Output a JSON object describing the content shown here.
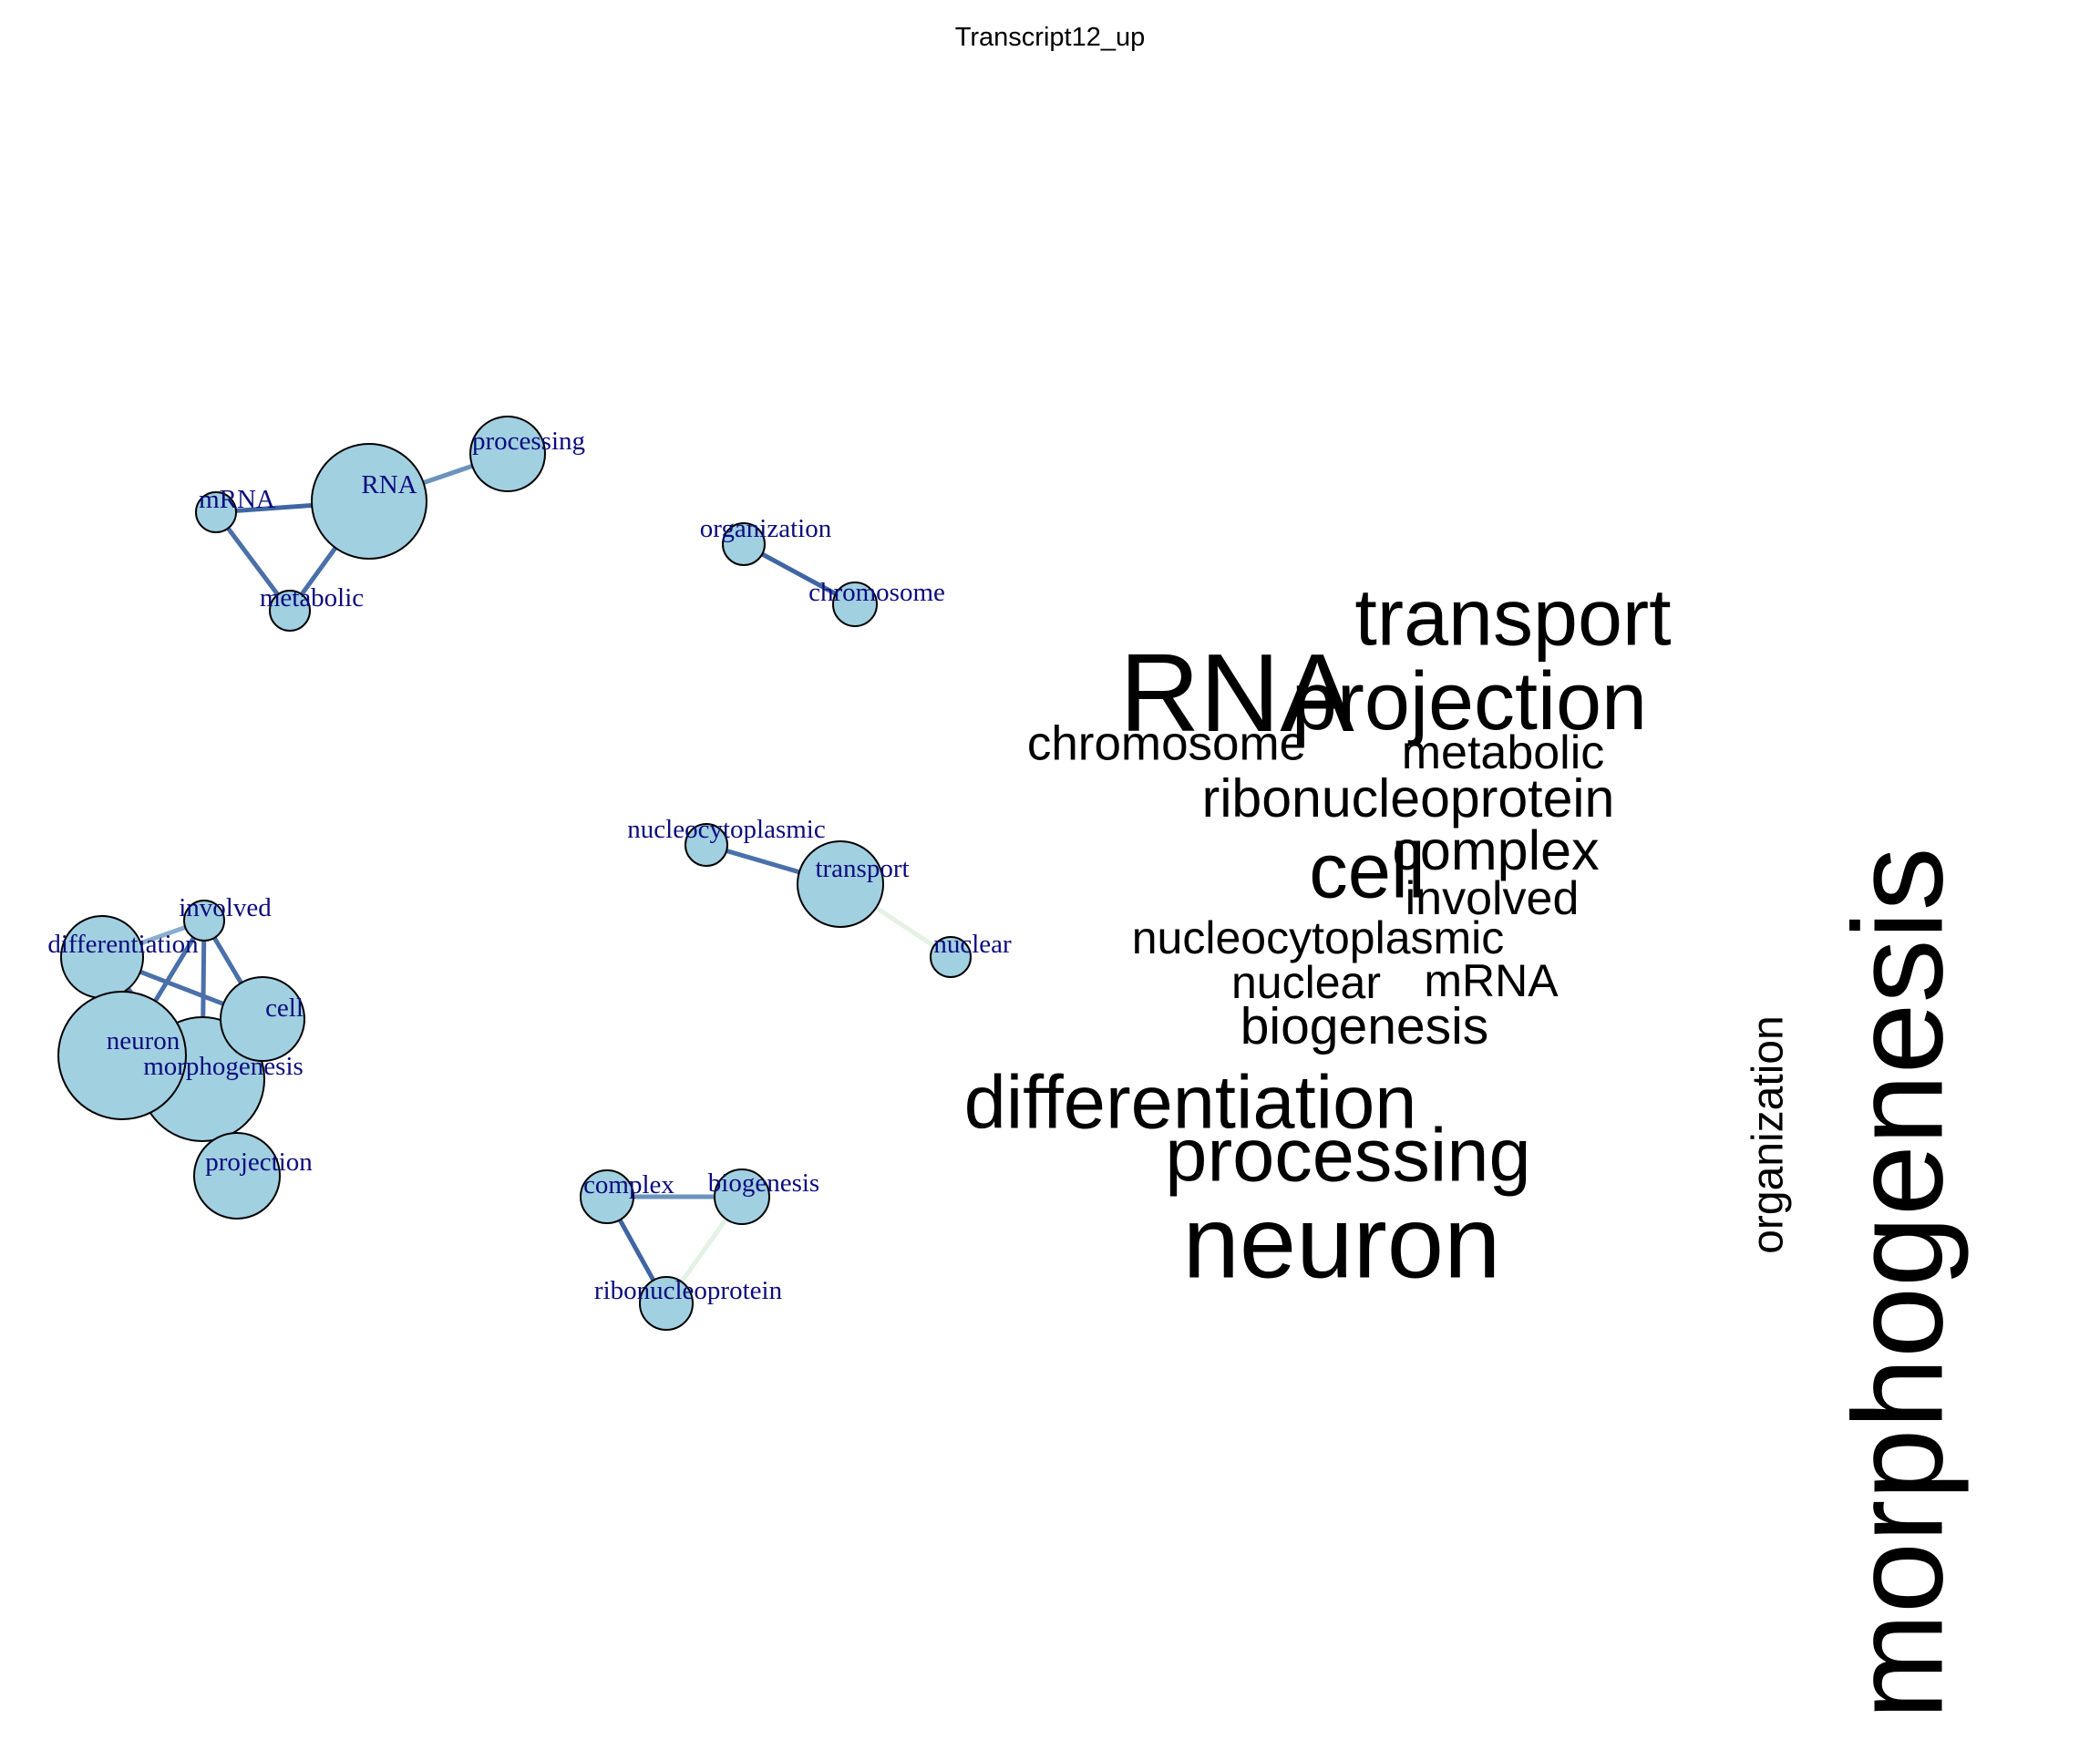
{
  "title": "Transcript12_up",
  "network": {
    "node_color": "#a1d0e1",
    "label_color": "#0c0c7e",
    "nodes": [
      {
        "id": "RNA",
        "label": "RNA"
      },
      {
        "id": "processing",
        "label": "processing"
      },
      {
        "id": "mRNA",
        "label": "mRNA"
      },
      {
        "id": "metabolic",
        "label": "metabolic"
      },
      {
        "id": "organization",
        "label": "organization"
      },
      {
        "id": "chromosome",
        "label": "chromosome"
      },
      {
        "id": "nucleocytoplasmic",
        "label": "nucleocytoplasmic"
      },
      {
        "id": "transport",
        "label": "transport"
      },
      {
        "id": "nuclear",
        "label": "nuclear"
      },
      {
        "id": "involved",
        "label": "involved"
      },
      {
        "id": "differentiation",
        "label": "differentiation"
      },
      {
        "id": "cell",
        "label": "cell"
      },
      {
        "id": "morphogenesis",
        "label": "morphogenesis"
      },
      {
        "id": "neuron",
        "label": "neuron"
      },
      {
        "id": "projection",
        "label": "projection"
      },
      {
        "id": "complex",
        "label": "complex"
      },
      {
        "id": "biogenesis",
        "label": "biogenesis"
      },
      {
        "id": "ribonucleoprotein",
        "label": "ribonucleoprotein"
      }
    ],
    "edges": [
      {
        "source": "RNA",
        "target": "processing",
        "color": "#6a93bd"
      },
      {
        "source": "mRNA",
        "target": "RNA",
        "color": "#3f66a3"
      },
      {
        "source": "mRNA",
        "target": "metabolic",
        "color": "#4a70aa"
      },
      {
        "source": "metabolic",
        "target": "RNA",
        "color": "#4a70aa"
      },
      {
        "source": "organization",
        "target": "chromosome",
        "color": "#3f66a3"
      },
      {
        "source": "nucleocytoplasmic",
        "target": "transport",
        "color": "#4a70aa"
      },
      {
        "source": "transport",
        "target": "nuclear",
        "color": "#e3f2e4"
      },
      {
        "source": "involved",
        "target": "cell",
        "color": "#4a70aa"
      },
      {
        "source": "involved",
        "target": "morphogenesis",
        "color": "#4a70aa"
      },
      {
        "source": "involved",
        "target": "neuron",
        "color": "#4a70aa"
      },
      {
        "source": "involved",
        "target": "differentiation",
        "color": "#8aaece"
      },
      {
        "source": "differentiation",
        "target": "cell",
        "color": "#4a70aa"
      },
      {
        "source": "differentiation",
        "target": "morphogenesis",
        "color": "#4a70aa"
      },
      {
        "source": "neuron",
        "target": "differentiation",
        "color": "#4a70aa"
      },
      {
        "source": "neuron",
        "target": "morphogenesis",
        "color": "#4a70aa"
      },
      {
        "source": "neuron",
        "target": "cell",
        "color": "#4a70aa"
      },
      {
        "source": "morphogenesis",
        "target": "cell",
        "color": "#4a70aa"
      },
      {
        "source": "projection",
        "target": "morphogenesis",
        "color": "#4a70aa"
      },
      {
        "source": "complex",
        "target": "biogenesis",
        "color": "#6a93bd"
      },
      {
        "source": "complex",
        "target": "ribonucleoprotein",
        "color": "#3f66a3"
      },
      {
        "source": "ribonucleoprotein",
        "target": "biogenesis",
        "color": "#e3f2e4"
      }
    ]
  },
  "wordcloud": {
    "words": [
      {
        "text": "morphogenesis",
        "rotated": true
      },
      {
        "text": "transport",
        "rotated": false
      },
      {
        "text": "RNA",
        "rotated": false
      },
      {
        "text": "projection",
        "rotated": false
      },
      {
        "text": "chromosome",
        "rotated": false
      },
      {
        "text": "metabolic",
        "rotated": false
      },
      {
        "text": "ribonucleoprotein",
        "rotated": false
      },
      {
        "text": "cell",
        "rotated": false
      },
      {
        "text": "complex",
        "rotated": false
      },
      {
        "text": "involved",
        "rotated": false
      },
      {
        "text": "organization",
        "rotated": true
      },
      {
        "text": "nucleocytoplasmic",
        "rotated": false
      },
      {
        "text": "nuclear",
        "rotated": false
      },
      {
        "text": "mRNA",
        "rotated": false
      },
      {
        "text": "biogenesis",
        "rotated": false
      },
      {
        "text": "differentiation",
        "rotated": false
      },
      {
        "text": "processing",
        "rotated": false
      },
      {
        "text": "neuron",
        "rotated": false
      }
    ]
  }
}
